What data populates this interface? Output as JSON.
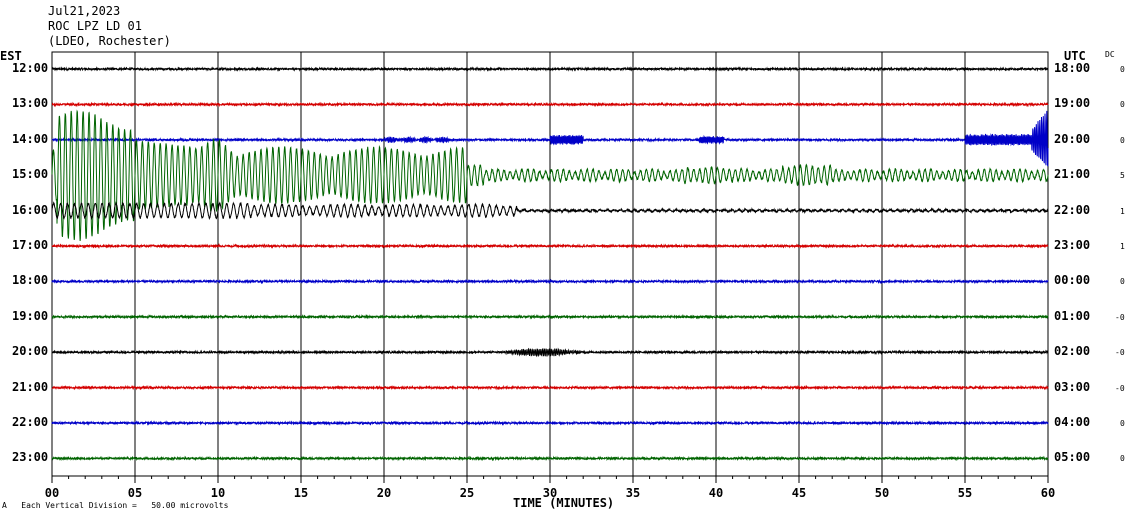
{
  "header": {
    "date": "Jul21,2023",
    "station": "ROC LPZ LD 01",
    "network": "(LDEO, Rochester)"
  },
  "left_axis_label": "EST",
  "right_axis_label": "UTC",
  "dc_label": "DC",
  "footer": {
    "mark": "A",
    "scale_text": "Each Vertical Division =   50.00 microvolts"
  },
  "chart_data": {
    "type": "line",
    "xlabel": "TIME (MINUTES)",
    "xlim": [
      0,
      60
    ],
    "x_ticks": [
      "00",
      "05",
      "10",
      "15",
      "20",
      "25",
      "30",
      "35",
      "40",
      "45",
      "50",
      "55",
      "60"
    ],
    "grid": true,
    "colors": [
      "#000000",
      "#d40000",
      "#0000c8",
      "#006400"
    ],
    "rows": [
      {
        "est": "12:00",
        "utc": "18:00",
        "dc": "0",
        "color": "#000000"
      },
      {
        "est": "13:00",
        "utc": "19:00",
        "dc": "0",
        "color": "#d40000"
      },
      {
        "est": "14:00",
        "utc": "20:00",
        "dc": "0",
        "color": "#0000c8"
      },
      {
        "est": "15:00",
        "utc": "21:00",
        "dc": "5",
        "color": "#006400"
      },
      {
        "est": "16:00",
        "utc": "22:00",
        "dc": "1",
        "color": "#000000"
      },
      {
        "est": "17:00",
        "utc": "23:00",
        "dc": "1",
        "color": "#d40000"
      },
      {
        "est": "18:00",
        "utc": "00:00",
        "dc": "0",
        "color": "#0000c8"
      },
      {
        "est": "19:00",
        "utc": "01:00",
        "dc": "-0",
        "color": "#006400"
      },
      {
        "est": "20:00",
        "utc": "02:00",
        "dc": "-0",
        "color": "#000000"
      },
      {
        "est": "21:00",
        "utc": "03:00",
        "dc": "-0",
        "color": "#d40000"
      },
      {
        "est": "22:00",
        "utc": "04:00",
        "dc": "0",
        "color": "#0000c8"
      },
      {
        "est": "23:00",
        "utc": "05:00",
        "dc": "0",
        "color": "#006400"
      }
    ],
    "events": [
      {
        "row": 2,
        "description": "small bursts",
        "minutes": [
          20,
          60
        ]
      },
      {
        "row": 3,
        "description": "large surface-wave oscillation",
        "minutes": [
          0,
          60
        ]
      },
      {
        "row": 4,
        "description": "moderate oscillation",
        "minutes": [
          0,
          28
        ]
      },
      {
        "row": 8,
        "description": "small wave packet",
        "minutes": [
          27,
          32
        ]
      }
    ]
  }
}
